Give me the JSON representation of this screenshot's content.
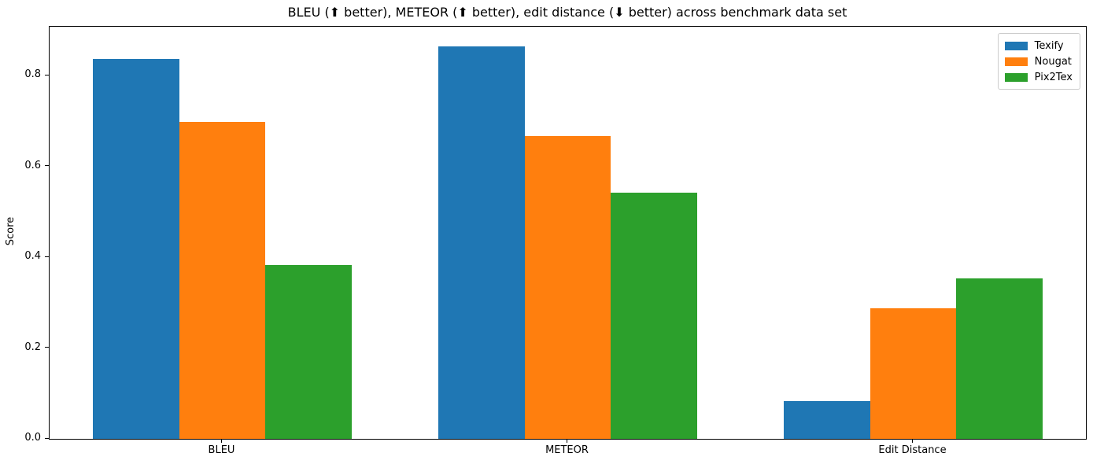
{
  "chart_data": {
    "type": "bar",
    "title": "BLEU (⬆ better), METEOR (⬆ better), edit distance (⬇ better) across benchmark data set",
    "xlabel": "",
    "ylabel": "Score",
    "categories": [
      "BLEU",
      "METEOR",
      "Edit Distance"
    ],
    "series": [
      {
        "name": "Texify",
        "color": "#1f77b4",
        "values": [
          0.837,
          0.865,
          0.083
        ]
      },
      {
        "name": "Nougat",
        "color": "#ff7f0e",
        "values": [
          0.698,
          0.668,
          0.288
        ]
      },
      {
        "name": "Pix2Tex",
        "color": "#2ca02c",
        "values": [
          0.383,
          0.543,
          0.353
        ]
      }
    ],
    "ylim": [
      0,
      0.908
    ],
    "yticks": [
      0.0,
      0.2,
      0.4,
      0.6,
      0.8
    ],
    "ytick_labels": [
      "0.0",
      "0.2",
      "0.4",
      "0.6",
      "0.8"
    ],
    "grid": false,
    "legend_position": "upper right",
    "bar_width_fraction": 0.25
  }
}
